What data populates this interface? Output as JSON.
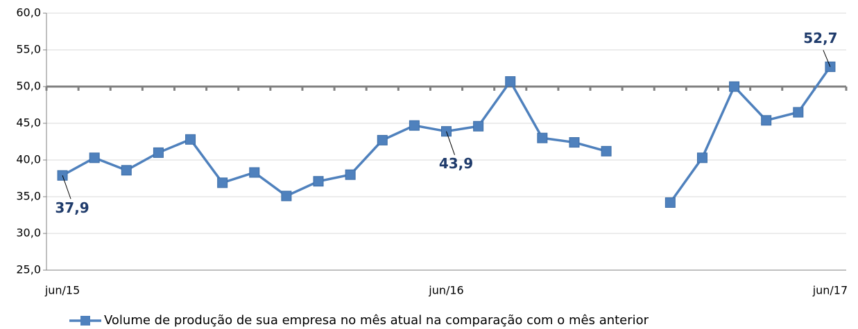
{
  "chart_data": {
    "type": "line",
    "categories": [
      "jun/15",
      null,
      null,
      null,
      null,
      null,
      null,
      null,
      null,
      null,
      null,
      null,
      "jun/16",
      null,
      null,
      null,
      null,
      null,
      null,
      null,
      null,
      null,
      null,
      null,
      "jun/17"
    ],
    "series": [
      {
        "name": "Volume de produção de sua empresa no mês atual na comparação com o mês anterior",
        "color": "#4f81bd",
        "values": [
          37.9,
          40.3,
          38.6,
          41.0,
          42.8,
          36.9,
          38.3,
          35.1,
          37.1,
          38.0,
          42.7,
          44.7,
          43.9,
          44.6,
          50.7,
          43.0,
          42.4,
          41.2,
          null,
          34.2,
          40.3,
          50.0,
          45.4,
          46.5,
          52.7
        ],
        "value_labels": [
          "37,9",
          null,
          null,
          null,
          null,
          null,
          null,
          null,
          null,
          null,
          null,
          null,
          "43,9",
          null,
          null,
          null,
          null,
          null,
          null,
          null,
          null,
          null,
          null,
          null,
          "52,7"
        ]
      }
    ],
    "ylim": [
      25,
      60
    ],
    "yticks": [
      {
        "value": 25,
        "label": "25,0"
      },
      {
        "value": 30,
        "label": "30,0"
      },
      {
        "value": 35,
        "label": "35,0"
      },
      {
        "value": 40,
        "label": "40,0"
      },
      {
        "value": 45,
        "label": "45,0"
      },
      {
        "value": 50,
        "label": "50,0"
      },
      {
        "value": 55,
        "label": "55,0"
      },
      {
        "value": 60,
        "label": "60,0"
      }
    ],
    "reference_line": 50,
    "grid": true,
    "legend": "bottom"
  }
}
